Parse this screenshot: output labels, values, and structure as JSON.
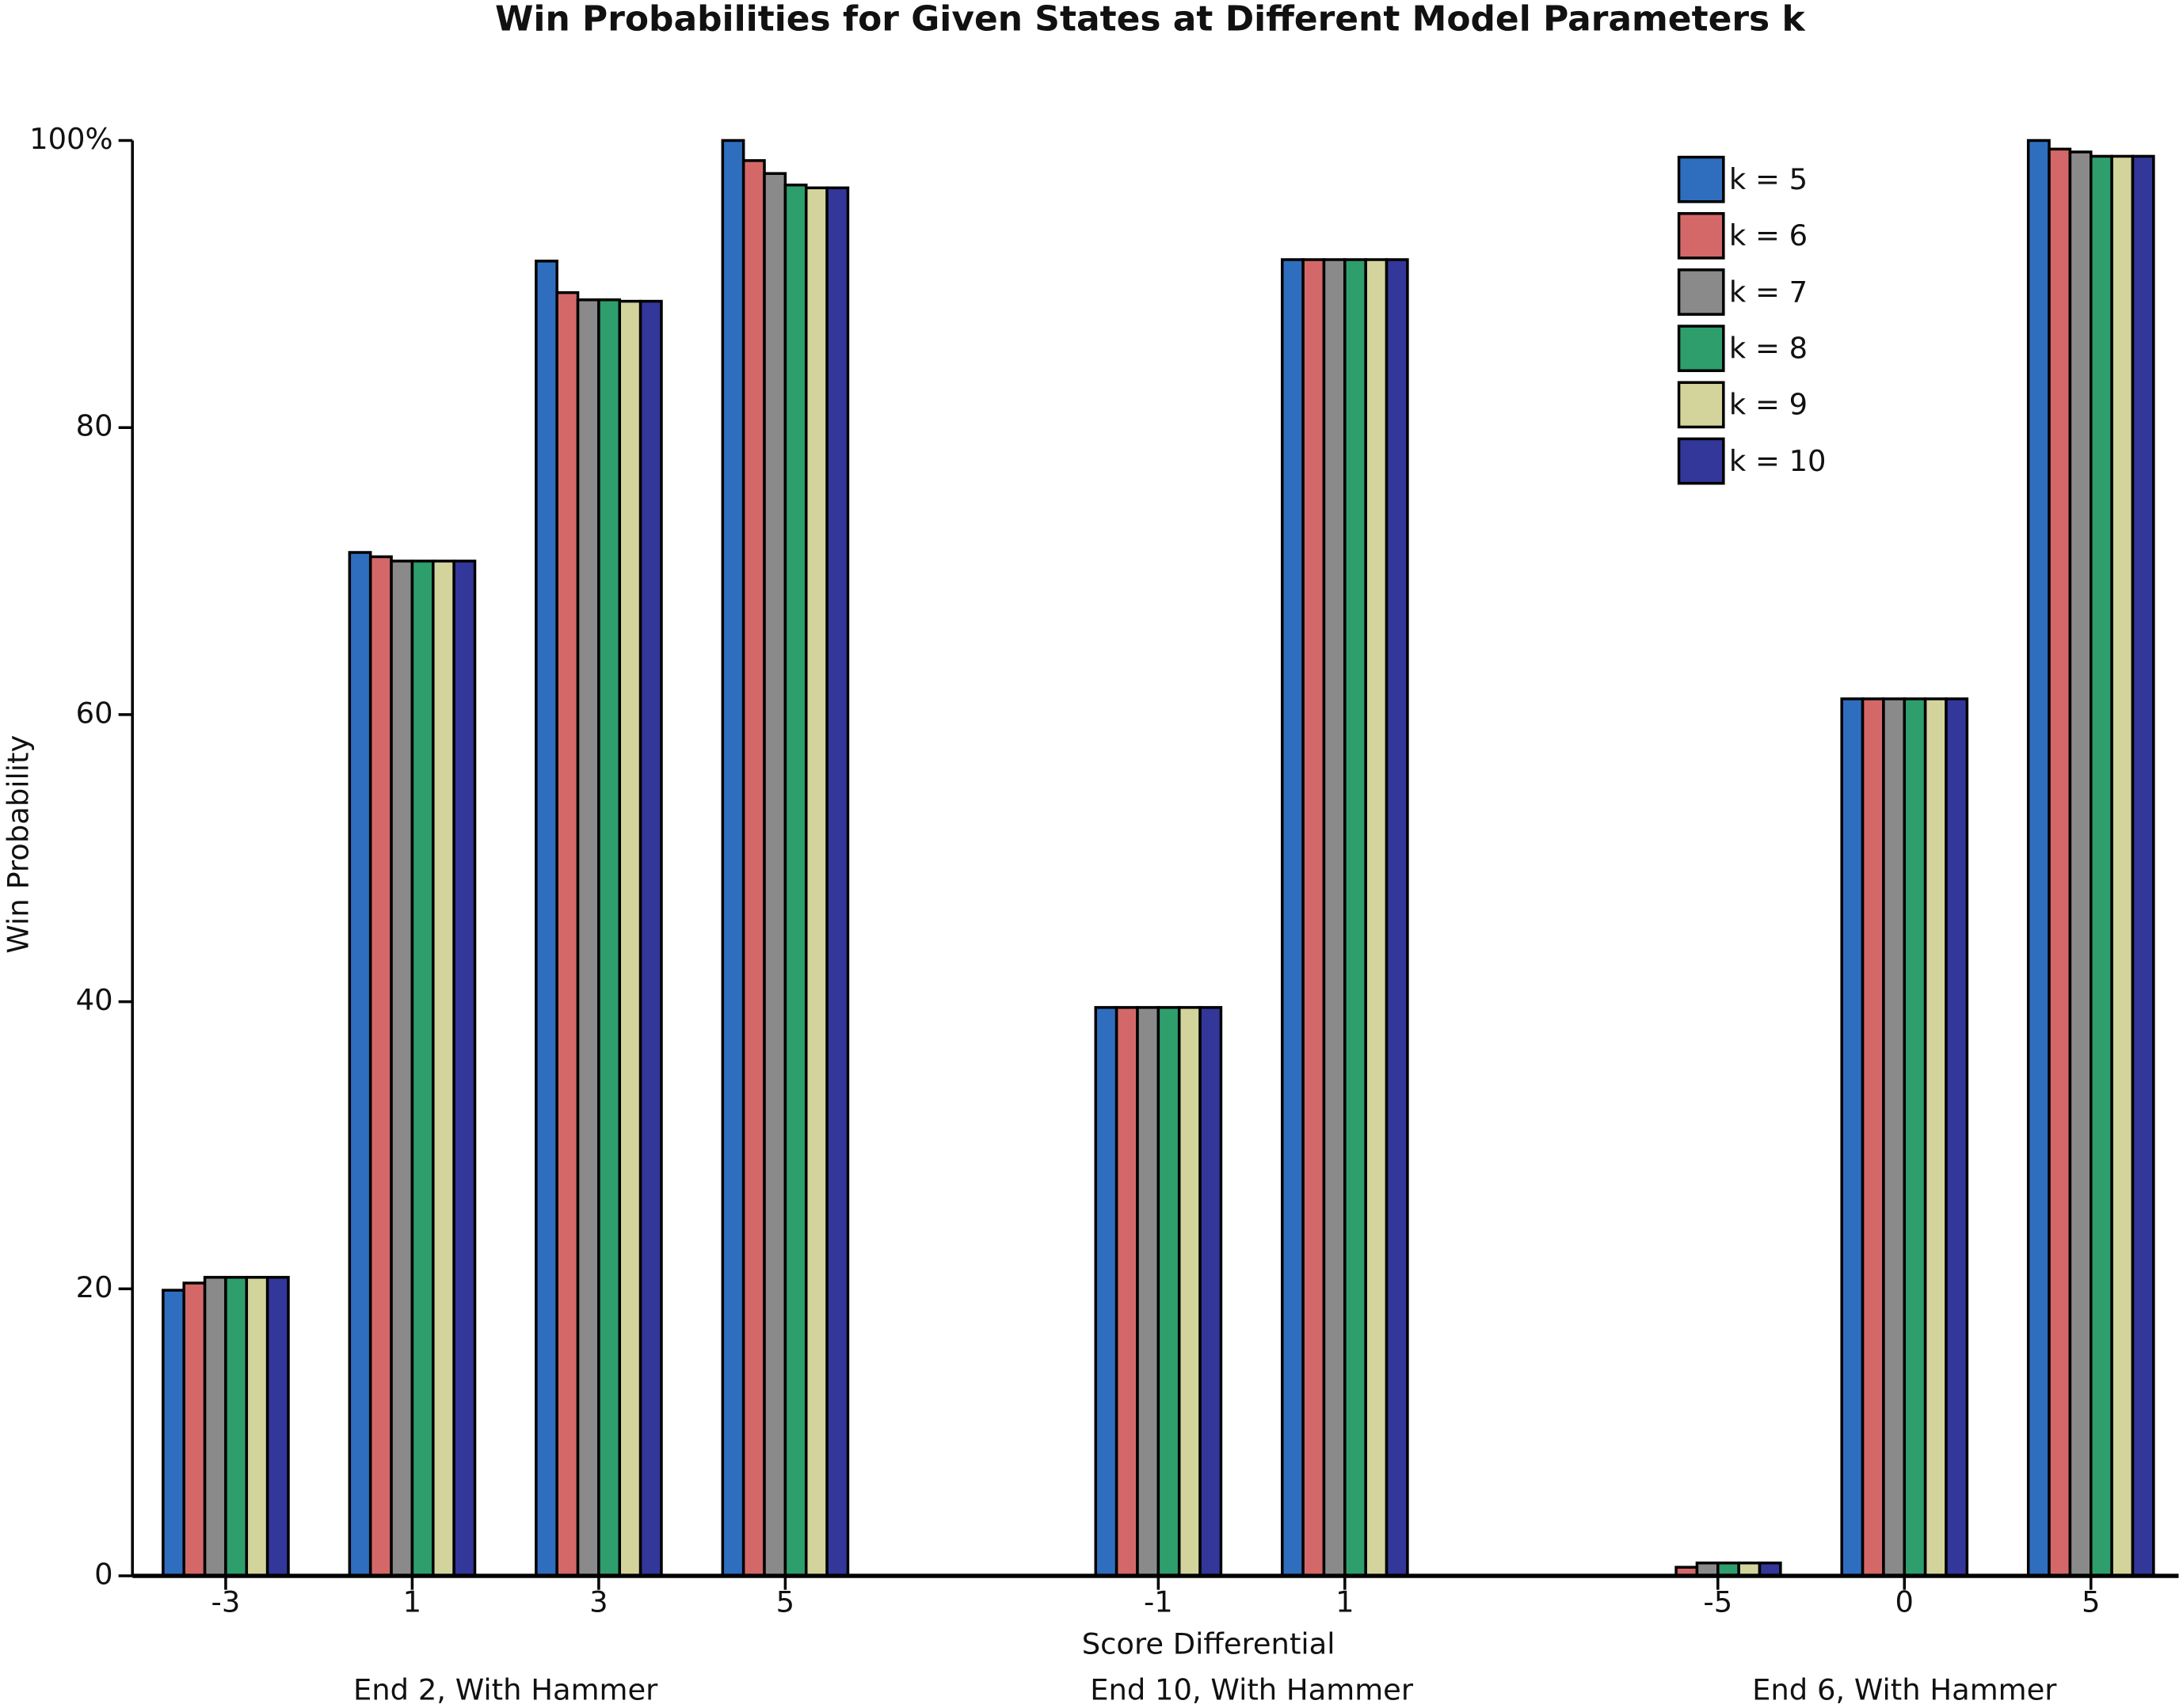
{
  "chart_data": {
    "type": "bar",
    "title": "Win Probabilities for Given States at Different Model Parameters k",
    "x_label": "Score Differential",
    "y_label": "Win Probability",
    "categories": [
      "-3",
      "1",
      "3",
      "5",
      null,
      "-1",
      "1",
      null,
      "-5",
      "0",
      "5"
    ],
    "groups": [
      "End 2, With Hammer",
      "End 10, With Hammer",
      "End 6, With Hammer"
    ],
    "series": [
      {
        "name": "k = 5",
        "color": "#2f6ebf",
        "values": [
          19.9,
          71.3,
          91.6,
          100,
          null,
          39.6,
          91.7,
          null,
          0,
          61.1,
          100
        ]
      },
      {
        "name": "k = 6",
        "color": "#d46868",
        "values": [
          20.4,
          71.0,
          89.4,
          98.6,
          null,
          39.6,
          91.7,
          null,
          0.6,
          61.1,
          99.4
        ]
      },
      {
        "name": "k = 7",
        "color": "#8a8a8a",
        "values": [
          20.8,
          70.7,
          88.9,
          97.7,
          null,
          39.6,
          91.7,
          null,
          0.9,
          61.1,
          99.2
        ]
      },
      {
        "name": "k = 8",
        "color": "#2e9e6c",
        "values": [
          20.8,
          70.7,
          88.9,
          96.9,
          null,
          39.6,
          91.7,
          null,
          0.9,
          61.1,
          98.9
        ]
      },
      {
        "name": "k = 9",
        "color": "#d3d49b",
        "values": [
          20.8,
          70.7,
          88.8,
          96.7,
          null,
          39.6,
          91.7,
          null,
          0.9,
          61.1,
          98.9
        ]
      },
      {
        "name": "k = 10",
        "color": "#33379a",
        "values": [
          20.8,
          70.7,
          88.8,
          96.7,
          null,
          39.6,
          91.7,
          null,
          0.9,
          61.1,
          98.9
        ]
      }
    ],
    "ylim": [
      0,
      100
    ],
    "yticks": [
      0,
      20,
      40,
      60,
      80,
      {
        "value": 100,
        "label": "100%"
      }
    ],
    "legend": "top-right"
  }
}
